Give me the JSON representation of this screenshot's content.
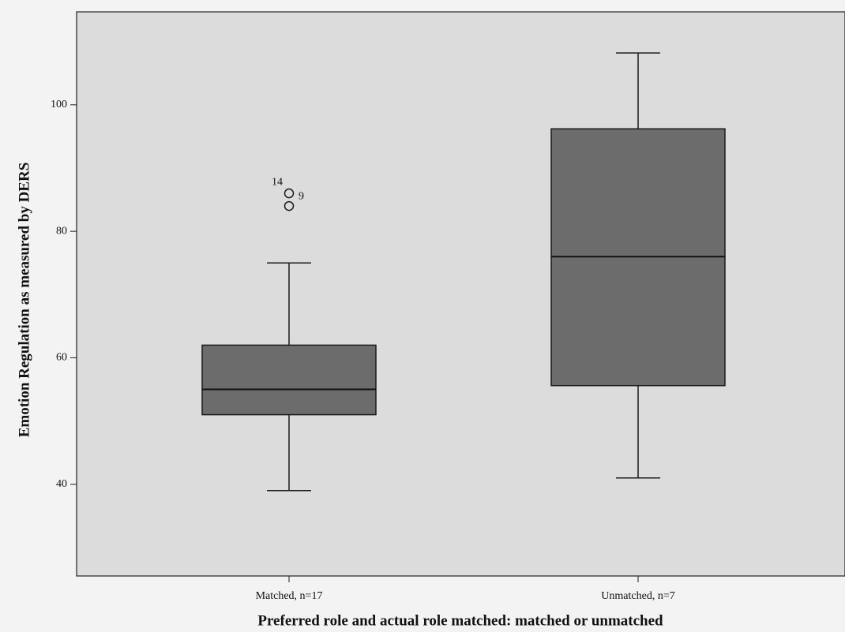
{
  "chart_data": {
    "type": "box",
    "x_label": "Preferred role and actual role matched: matched or unmatched",
    "y_label": "Emotion Regulation as measured by DERS",
    "categories": [
      "Matched, n=17",
      "Unmatched, n=7"
    ],
    "boxes": [
      {
        "whisker_low": 39,
        "q1": 51,
        "median": 55,
        "q3": 62,
        "whisker_high": 75,
        "outliers": [
          {
            "value": 86,
            "label": "14"
          },
          {
            "value": 84,
            "label": "9"
          }
        ]
      },
      {
        "whisker_low": 41,
        "q1": 55.6,
        "median": 76,
        "q3": 96.2,
        "whisker_high": 108.2,
        "outliers": []
      }
    ],
    "color": "#6c6c6c",
    "ylim": [
      25.5,
      114.7
    ],
    "yticks": [
      40,
      60,
      80,
      100
    ]
  }
}
